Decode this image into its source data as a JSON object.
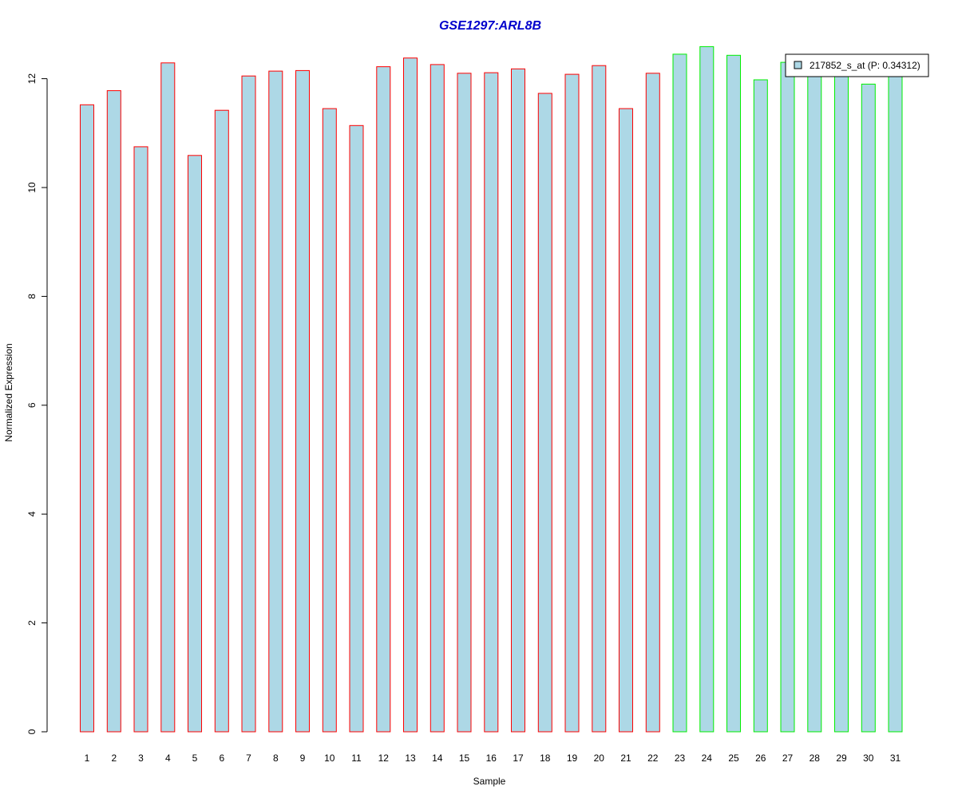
{
  "chart_data": {
    "type": "bar",
    "title": "GSE1297:ARL8B",
    "title_color": "#0000cc",
    "xlabel": "Sample",
    "ylabel": "Normalized Expression",
    "ylim": [
      0,
      12
    ],
    "y_ticks": [
      0,
      2,
      4,
      6,
      8,
      10,
      12
    ],
    "grid": false,
    "legend_position": "top-right",
    "categories": [
      "1",
      "2",
      "3",
      "4",
      "5",
      "6",
      "7",
      "8",
      "9",
      "10",
      "11",
      "12",
      "13",
      "14",
      "15",
      "16",
      "17",
      "18",
      "19",
      "20",
      "21",
      "22",
      "23",
      "24",
      "25",
      "26",
      "27",
      "28",
      "29",
      "30",
      "31"
    ],
    "series": [
      {
        "name": "217852_s_at (P: 0.34312)",
        "fill_color": "#add8e6",
        "values": [
          11.52,
          11.78,
          10.75,
          12.29,
          10.59,
          11.42,
          12.05,
          12.14,
          12.15,
          11.45,
          11.14,
          12.22,
          12.38,
          12.26,
          12.1,
          12.11,
          12.18,
          11.73,
          12.08,
          12.24,
          11.45,
          12.1,
          12.45,
          12.59,
          12.43,
          11.98,
          12.3,
          12.1,
          12.05,
          11.9,
          12.1
        ],
        "border_colors": [
          "#ff0000",
          "#ff0000",
          "#ff0000",
          "#ff0000",
          "#ff0000",
          "#ff0000",
          "#ff0000",
          "#ff0000",
          "#ff0000",
          "#ff0000",
          "#ff0000",
          "#ff0000",
          "#ff0000",
          "#ff0000",
          "#ff0000",
          "#ff0000",
          "#ff0000",
          "#ff0000",
          "#ff0000",
          "#ff0000",
          "#ff0000",
          "#ff0000",
          "#00ee00",
          "#00ee00",
          "#00ee00",
          "#00ee00",
          "#00ee00",
          "#00ee00",
          "#00ee00",
          "#00ee00",
          "#00ee00"
        ]
      }
    ]
  }
}
